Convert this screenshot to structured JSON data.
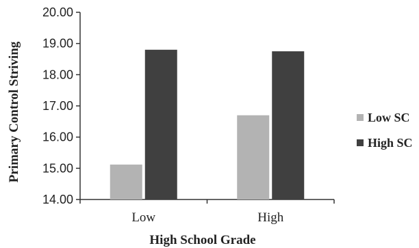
{
  "chart_data": {
    "type": "bar",
    "title": "",
    "xlabel": "High School Grade",
    "ylabel": "Primary Control Striving",
    "categories": [
      "Low",
      "High"
    ],
    "series": [
      {
        "name": "Low SC",
        "values": [
          15.12,
          16.7
        ],
        "color": "#b3b3b3"
      },
      {
        "name": "High SC",
        "values": [
          18.8,
          18.75
        ],
        "color": "#404040"
      }
    ],
    "ylim": [
      14.0,
      20.0
    ],
    "yticks": [
      "14.00",
      "15.00",
      "16.00",
      "17.00",
      "18.00",
      "19.00",
      "20.00"
    ],
    "grid": false,
    "legend_position": "right"
  }
}
